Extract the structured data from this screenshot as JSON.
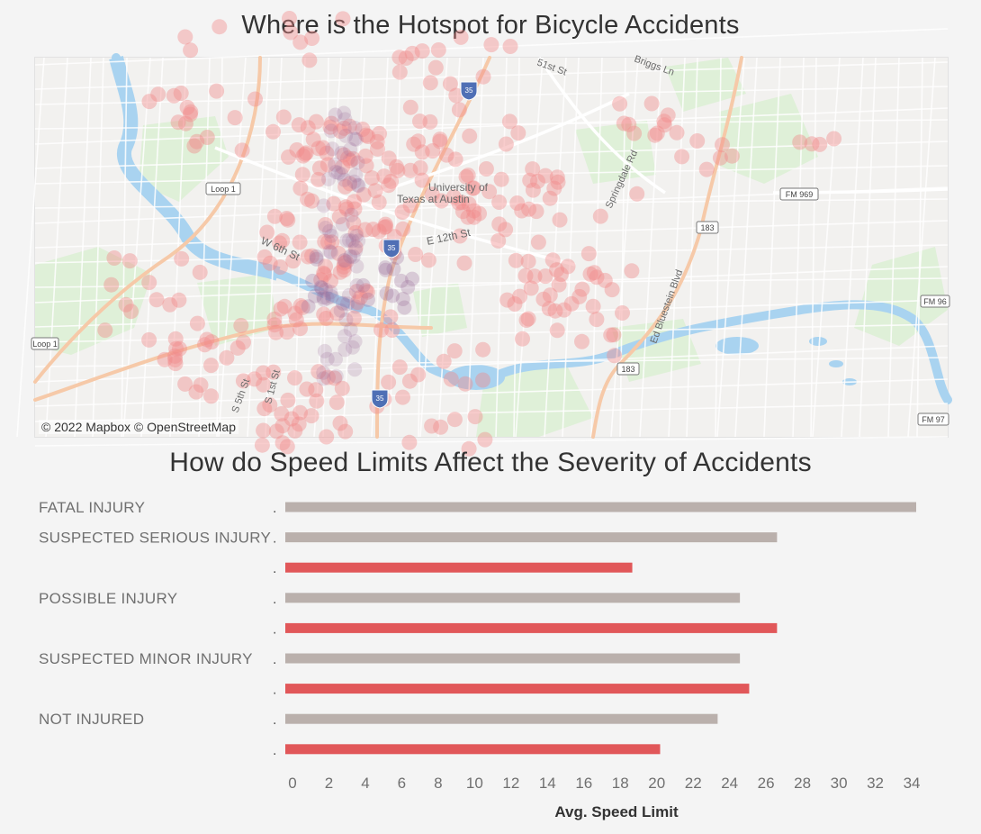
{
  "map": {
    "title": "Where is the Hotspot for Bicycle Accidents",
    "attribution": "© 2022 Mapbox © OpenStreetMap",
    "labels": [
      {
        "name": "map-label-university",
        "text": "University of",
        "x": 437,
        "y": 148,
        "size": 12,
        "rot": 0
      },
      {
        "name": "map-label-texas",
        "text": "Texas at Austin",
        "x": 402,
        "y": 161,
        "size": 12,
        "rot": 0
      },
      {
        "name": "map-label-e12th",
        "text": "E 12th St",
        "x": 436,
        "y": 208,
        "size": 12,
        "rot": -12
      },
      {
        "name": "map-label-w6th",
        "text": "W 6th St",
        "x": 250,
        "y": 206,
        "size": 12,
        "rot": 25
      },
      {
        "name": "map-label-springdale",
        "text": "Springdale Rd",
        "x": 640,
        "y": 168,
        "size": 11,
        "rot": -65
      },
      {
        "name": "map-label-bluestein",
        "text": "Ed Bluestein Blvd",
        "x": 690,
        "y": 318,
        "size": 11,
        "rot": -70
      },
      {
        "name": "map-label-s5th",
        "text": "S 5th St",
        "x": 225,
        "y": 395,
        "size": 11,
        "rot": -70
      },
      {
        "name": "map-label-s1st",
        "text": "S 1st St",
        "x": 262,
        "y": 385,
        "size": 11,
        "rot": -75
      },
      {
        "name": "map-label-51st",
        "text": "51st St",
        "x": 557,
        "y": 8,
        "size": 11,
        "rot": 20
      },
      {
        "name": "map-label-briggs",
        "text": "Briggs Ln",
        "x": 665,
        "y": 4,
        "size": 11,
        "rot": 20
      }
    ],
    "shields": [
      {
        "name": "loop1-shield-north",
        "text": "Loop 1",
        "x": 190,
        "y": 139,
        "w": 38
      },
      {
        "name": "loop1-shield-south",
        "text": "Loop 1",
        "x": -4,
        "y": 311,
        "w": 30
      },
      {
        "name": "fm969-shield",
        "text": "FM 969",
        "x": 828,
        "y": 145,
        "w": 42
      },
      {
        "name": "fm96-shield",
        "text": "FM 96",
        "x": 984,
        "y": 264,
        "w": 32
      },
      {
        "name": "fm97-shield",
        "text": "FM 97",
        "x": 981,
        "y": 395,
        "w": 34
      },
      {
        "name": "i35-shield-north",
        "text": "35",
        "x": 473,
        "y": 27,
        "w": 18
      },
      {
        "name": "i35-shield-center",
        "text": "35",
        "x": 387,
        "y": 202,
        "w": 18
      },
      {
        "name": "i35-shield-south",
        "text": "35",
        "x": 374,
        "y": 369,
        "w": 18
      },
      {
        "name": "us183-shield-north",
        "text": "183",
        "x": 735,
        "y": 182,
        "w": 24
      },
      {
        "name": "us183-shield-south",
        "text": "183",
        "x": 647,
        "y": 339,
        "w": 24
      }
    ]
  },
  "chart": {
    "title": "How do Speed Limits Affect the Severity of Accidents",
    "x_axis_title": "Avg. Speed Limit"
  },
  "chart_data": {
    "type": "bar",
    "orientation": "horizontal",
    "x_axis_title": "Avg. Speed Limit",
    "xlim": [
      0,
      34
    ],
    "ticks": [
      0,
      2,
      4,
      6,
      8,
      10,
      12,
      14,
      16,
      18,
      20,
      22,
      24,
      26,
      28,
      30,
      32,
      34
    ],
    "grid": false,
    "rows": [
      {
        "category": "FATAL INJURY",
        "sub_label": ".",
        "value": 34.0,
        "color": "#bab0ac"
      },
      {
        "category": "SUSPECTED SERIOUS INJURY",
        "sub_label": ".",
        "value": 26.5,
        "color": "#bab0ac"
      },
      {
        "category": "",
        "sub_label": ".",
        "value": 18.7,
        "color": "#e15759"
      },
      {
        "category": "POSSIBLE INJURY",
        "sub_label": ".",
        "value": 24.5,
        "color": "#bab0ac"
      },
      {
        "category": "",
        "sub_label": ".",
        "value": 26.5,
        "color": "#e15759"
      },
      {
        "category": "SUSPECTED MINOR INJURY",
        "sub_label": ".",
        "value": 24.5,
        "color": "#bab0ac"
      },
      {
        "category": "",
        "sub_label": ".",
        "value": 25.0,
        "color": "#e15759"
      },
      {
        "category": "NOT INJURED",
        "sub_label": ".",
        "value": 23.3,
        "color": "#bab0ac"
      },
      {
        "category": "",
        "sub_label": ".",
        "value": 20.2,
        "color": "#e15759"
      }
    ]
  },
  "colors": {
    "background": "#f4f4f4",
    "bar_gray": "#bab0ac",
    "bar_red": "#e15759",
    "heat_dot": "#f08a8a",
    "heat_dense": "#9a6f9c",
    "water": "#a9d3f0",
    "park": "#dff0d8",
    "highway": "#f6c9a8",
    "road": "#ffffff"
  }
}
